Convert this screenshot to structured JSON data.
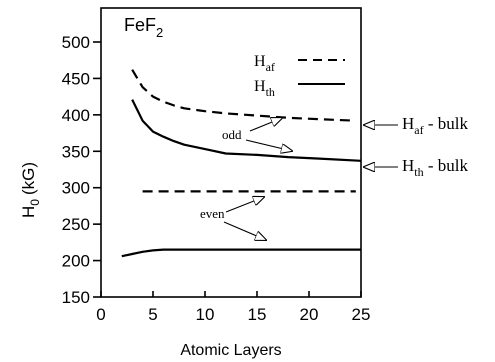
{
  "chart_data": {
    "type": "line",
    "title": "FeF",
    "title_subscript": "2",
    "xlabel": "Atomic Layers",
    "ylabel": "H",
    "ylabel_subscript": "0",
    "ylabel_unit": "(kG)",
    "xlim": [
      0,
      25
    ],
    "ylim": [
      150,
      500
    ],
    "x_ticks": [
      0,
      5,
      10,
      15,
      20,
      25
    ],
    "y_ticks": [
      150,
      200,
      250,
      300,
      350,
      400,
      450,
      500
    ],
    "grid": false,
    "legend_position": "top-right",
    "legend": [
      {
        "label": "H",
        "sub": "af",
        "style": "dashed"
      },
      {
        "label": "H",
        "sub": "th",
        "style": "solid"
      }
    ],
    "series": [
      {
        "style": "dashed",
        "group": "odd",
        "x": [
          3,
          4,
          5,
          6,
          7,
          8,
          10,
          12,
          15,
          18,
          21,
          24.5
        ],
        "y": [
          462,
          438,
          425,
          418,
          413,
          409,
          405,
          402,
          399,
          396,
          394,
          392
        ]
      },
      {
        "style": "solid",
        "group": "odd",
        "x": [
          3,
          4,
          5,
          6,
          7,
          8,
          10,
          12,
          15,
          18,
          21,
          25
        ],
        "y": [
          421,
          392,
          377,
          370,
          364,
          359,
          353,
          347,
          345,
          342,
          340,
          337
        ]
      },
      {
        "style": "dashed",
        "group": "even",
        "x": [
          4,
          24.5
        ],
        "y": [
          295,
          295
        ]
      },
      {
        "style": "solid",
        "group": "even",
        "x": [
          2,
          3,
          4,
          5,
          6,
          8,
          10,
          15,
          20,
          25
        ],
        "y": [
          206,
          209,
          212,
          214,
          215,
          215,
          215,
          215,
          215,
          215
        ]
      }
    ],
    "annotations": {
      "odd": "odd",
      "even": "even",
      "haf_bulk": {
        "label": "H",
        "sub": "af",
        "suffix": " - bulk"
      },
      "hth_bulk": {
        "label": "H",
        "sub": "th",
        "suffix": " - bulk"
      }
    }
  }
}
